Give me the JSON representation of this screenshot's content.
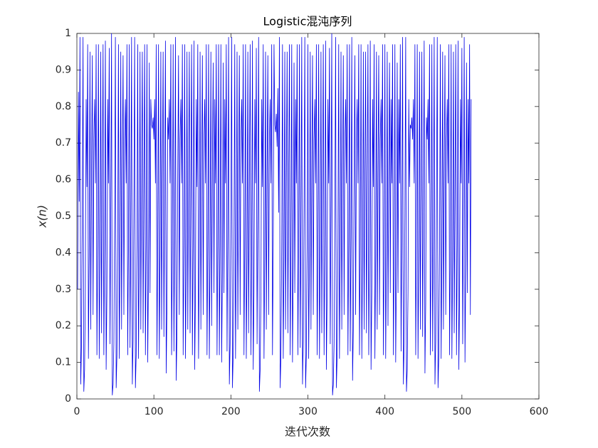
{
  "chart_data": {
    "type": "line",
    "title": "Logistic混沌序列",
    "x_label": "迭代次数",
    "y_label": "x(n)",
    "color": "#0000e6",
    "xlim": [
      0,
      600
    ],
    "xticks": [
      0,
      100,
      200,
      300,
      400,
      500,
      600
    ],
    "ylim": [
      0,
      1
    ],
    "yticks": [
      0,
      0.1,
      0.2,
      0.3,
      0.4,
      0.5,
      0.6,
      0.7,
      0.8,
      0.9,
      1
    ],
    "x": [
      1,
      2,
      3,
      4,
      5,
      6,
      7,
      8,
      9,
      10,
      11,
      12,
      13,
      14,
      15,
      16,
      17,
      18,
      19,
      20,
      21,
      22,
      23,
      24,
      25,
      26,
      27,
      28,
      29,
      30,
      31,
      32,
      33,
      34,
      35,
      36,
      37,
      38,
      39,
      40,
      41,
      42,
      43,
      44,
      45,
      46,
      47,
      48,
      49,
      50,
      51,
      52,
      53,
      54,
      55,
      56,
      57,
      58,
      59,
      60,
      61,
      62,
      63,
      64,
      65,
      66,
      67,
      68,
      69,
      70,
      71,
      72,
      73,
      74,
      75,
      76,
      77,
      78,
      79,
      80,
      81,
      82,
      83,
      84,
      85,
      86,
      87,
      88,
      89,
      90,
      91,
      92,
      93,
      94,
      95,
      96,
      97,
      98,
      99,
      100,
      101,
      102,
      103,
      104,
      105,
      106,
      107,
      108,
      109,
      110,
      111,
      112,
      113,
      114,
      115,
      116,
      117,
      118,
      119,
      120,
      121,
      122,
      123,
      124,
      125,
      126,
      127,
      128,
      129,
      130,
      131,
      132,
      133,
      134,
      135,
      136,
      137,
      138,
      139,
      140,
      141,
      142,
      143,
      144,
      145,
      146,
      147,
      148,
      149,
      150,
      151,
      152,
      153,
      154,
      155,
      156,
      157,
      158,
      159,
      160,
      161,
      162,
      163,
      164,
      165,
      166,
      167,
      168,
      169,
      170,
      171,
      172,
      173,
      174,
      175,
      176,
      177,
      178,
      179,
      180,
      181,
      182,
      183,
      184,
      185,
      186,
      187,
      188,
      189,
      190,
      191,
      192,
      193,
      194,
      195,
      196,
      197,
      198,
      199,
      200,
      201,
      202,
      203,
      204,
      205,
      206,
      207,
      208,
      209,
      210,
      211,
      212,
      213,
      214,
      215,
      216,
      217,
      218,
      219,
      220,
      221,
      222,
      223,
      224,
      225,
      226,
      227,
      228,
      229,
      230,
      231,
      232,
      233,
      234,
      235,
      236,
      237,
      238,
      239,
      240,
      241,
      242,
      243,
      244,
      245,
      246,
      247,
      248,
      249,
      250,
      251,
      252,
      253,
      254,
      255,
      256,
      257,
      258,
      259,
      260,
      261,
      262,
      263,
      264,
      265,
      266,
      267,
      268,
      269,
      270,
      271,
      272,
      273,
      274,
      275,
      276,
      277,
      278,
      279,
      280,
      281,
      282,
      283,
      284,
      285,
      286,
      287,
      288,
      289,
      290,
      291,
      292,
      293,
      294,
      295,
      296,
      297,
      298,
      299,
      300,
      301,
      302,
      303,
      304,
      305,
      306,
      307,
      308,
      309,
      310,
      311,
      312,
      313,
      314,
      315,
      316,
      317,
      318,
      319,
      320,
      321,
      322,
      323,
      324,
      325,
      326,
      327,
      328,
      329,
      330,
      331,
      332,
      333,
      334,
      335,
      336,
      337,
      338,
      339,
      340,
      341,
      342,
      343,
      344,
      345,
      346,
      347,
      348,
      349,
      350,
      351,
      352,
      353,
      354,
      355,
      356,
      357,
      358,
      359,
      360,
      361,
      362,
      363,
      364,
      365,
      366,
      367,
      368,
      369,
      370,
      371,
      372,
      373,
      374,
      375,
      376,
      377,
      378,
      379,
      380,
      381,
      382,
      383,
      384,
      385,
      386,
      387,
      388,
      389,
      390,
      391,
      392,
      393,
      394,
      395,
      396,
      397,
      398,
      399,
      400,
      401,
      402,
      403,
      404,
      405,
      406,
      407,
      408,
      409,
      410,
      411,
      412,
      413,
      414,
      415,
      416,
      417,
      418,
      419,
      420,
      421,
      422,
      423,
      424,
      425,
      426,
      427,
      428,
      429,
      430,
      431,
      432,
      433,
      434,
      435,
      436,
      437,
      438,
      439,
      440,
      441,
      442,
      443,
      444,
      445,
      446,
      447,
      448,
      449,
      450,
      451,
      452,
      453,
      454,
      455,
      456,
      457,
      458,
      459,
      460,
      461,
      462,
      463,
      464,
      465,
      466,
      467,
      468,
      469,
      470,
      471,
      472,
      473,
      474,
      475,
      476,
      477,
      478,
      479,
      480,
      481,
      482,
      483,
      484,
      485,
      486,
      487,
      488,
      489,
      490,
      491,
      492,
      493,
      494,
      495,
      496,
      497,
      498,
      499,
      500,
      501,
      502,
      503,
      504,
      505,
      506,
      507,
      508,
      509,
      510,
      511,
      512
    ],
    "values": [
      0.3,
      0.84,
      0.54,
      0.99,
      0.04,
      0.15,
      0.51,
      0.99,
      0.02,
      0.08,
      0.29,
      0.82,
      0.58,
      0.97,
      0.11,
      0.39,
      0.95,
      0.19,
      0.62,
      0.94,
      0.23,
      0.71,
      0.82,
      0.59,
      0.97,
      0.12,
      0.42,
      0.97,
      0.11,
      0.39,
      0.95,
      0.18,
      0.59,
      0.97,
      0.12,
      0.42,
      0.98,
      0.08,
      0.29,
      0.82,
      0.59,
      0.96,
      0.15,
      0.51,
      1.0,
      0.01,
      0.04,
      0.15,
      0.51,
      0.99,
      0.03,
      0.12,
      0.42,
      0.97,
      0.11,
      0.39,
      0.95,
      0.19,
      0.62,
      0.94,
      0.23,
      0.71,
      0.82,
      0.59,
      0.97,
      0.12,
      0.42,
      0.97,
      0.14,
      0.48,
      0.99,
      0.04,
      0.16,
      0.54,
      0.99,
      0.03,
      0.12,
      0.42,
      0.97,
      0.11,
      0.39,
      0.95,
      0.19,
      0.61,
      0.95,
      0.18,
      0.59,
      0.97,
      0.12,
      0.42,
      0.97,
      0.1,
      0.36,
      0.92,
      0.29,
      0.82,
      0.75,
      0.74,
      0.77,
      0.71,
      0.82,
      0.59,
      0.97,
      0.12,
      0.42,
      0.97,
      0.11,
      0.39,
      0.95,
      0.19,
      0.61,
      0.95,
      0.17,
      0.56,
      0.98,
      0.07,
      0.26,
      0.77,
      0.71,
      0.82,
      0.59,
      0.97,
      0.12,
      0.42,
      0.97,
      0.13,
      0.45,
      0.99,
      0.05,
      0.19,
      0.62,
      0.94,
      0.23,
      0.71,
      0.82,
      0.59,
      0.97,
      0.12,
      0.42,
      0.97,
      0.11,
      0.39,
      0.95,
      0.19,
      0.61,
      0.95,
      0.18,
      0.59,
      0.97,
      0.12,
      0.42,
      0.98,
      0.08,
      0.29,
      0.82,
      0.58,
      0.97,
      0.11,
      0.39,
      0.95,
      0.19,
      0.62,
      0.94,
      0.23,
      0.71,
      0.82,
      0.59,
      0.97,
      0.12,
      0.42,
      0.97,
      0.11,
      0.39,
      0.95,
      0.2,
      0.64,
      0.92,
      0.29,
      0.82,
      0.59,
      0.97,
      0.12,
      0.42,
      0.97,
      0.12,
      0.42,
      0.97,
      0.1,
      0.36,
      0.92,
      0.29,
      0.82,
      0.59,
      0.97,
      0.13,
      0.45,
      0.99,
      0.04,
      0.15,
      0.51,
      0.99,
      0.03,
      0.12,
      0.42,
      0.97,
      0.11,
      0.39,
      0.95,
      0.19,
      0.62,
      0.94,
      0.23,
      0.71,
      0.82,
      0.59,
      0.97,
      0.12,
      0.42,
      0.97,
      0.11,
      0.39,
      0.95,
      0.18,
      0.59,
      0.97,
      0.12,
      0.42,
      0.98,
      0.08,
      0.29,
      0.82,
      0.59,
      0.96,
      0.15,
      0.51,
      0.99,
      0.02,
      0.08,
      0.29,
      0.82,
      0.58,
      0.97,
      0.11,
      0.39,
      0.95,
      0.19,
      0.62,
      0.94,
      0.23,
      0.71,
      0.82,
      0.59,
      0.97,
      0.12,
      0.42,
      0.97,
      0.75,
      0.73,
      0.78,
      0.69,
      0.85,
      0.51,
      0.99,
      0.03,
      0.12,
      0.42,
      0.97,
      0.11,
      0.39,
      0.95,
      0.19,
      0.61,
      0.95,
      0.18,
      0.59,
      0.97,
      0.12,
      0.42,
      0.97,
      0.1,
      0.36,
      0.92,
      0.29,
      0.82,
      0.59,
      0.97,
      0.12,
      0.42,
      0.97,
      0.14,
      0.48,
      0.99,
      0.04,
      0.16,
      0.54,
      0.99,
      0.03,
      0.12,
      0.42,
      0.97,
      0.11,
      0.39,
      0.95,
      0.19,
      0.62,
      0.94,
      0.23,
      0.71,
      0.82,
      0.59,
      0.97,
      0.12,
      0.42,
      0.97,
      0.11,
      0.39,
      0.95,
      0.18,
      0.59,
      0.97,
      0.12,
      0.42,
      0.98,
      0.08,
      0.29,
      0.82,
      0.59,
      0.96,
      0.15,
      0.51,
      1.0,
      0.01,
      0.04,
      0.15,
      0.51,
      0.99,
      0.03,
      0.12,
      0.42,
      0.97,
      0.11,
      0.39,
      0.95,
      0.19,
      0.62,
      0.94,
      0.23,
      0.71,
      0.82,
      0.59,
      0.97,
      0.12,
      0.42,
      0.97,
      0.13,
      0.45,
      0.99,
      0.05,
      0.19,
      0.62,
      0.94,
      0.23,
      0.71,
      0.82,
      0.59,
      0.97,
      0.12,
      0.42,
      0.97,
      0.11,
      0.39,
      0.95,
      0.19,
      0.61,
      0.95,
      0.18,
      0.59,
      0.97,
      0.12,
      0.42,
      0.98,
      0.08,
      0.29,
      0.82,
      0.58,
      0.97,
      0.11,
      0.39,
      0.95,
      0.19,
      0.62,
      0.94,
      0.23,
      0.71,
      0.82,
      0.59,
      0.97,
      0.12,
      0.42,
      0.97,
      0.11,
      0.39,
      0.95,
      0.2,
      0.64,
      0.92,
      0.29,
      0.82,
      0.59,
      0.97,
      0.12,
      0.42,
      0.97,
      0.1,
      0.36,
      0.92,
      0.29,
      0.82,
      0.59,
      0.97,
      0.13,
      0.45,
      0.99,
      0.04,
      0.15,
      0.51,
      0.99,
      0.02,
      0.08,
      0.29,
      0.82,
      0.58,
      0.75,
      0.74,
      0.77,
      0.71,
      0.82,
      0.59,
      0.97,
      0.12,
      0.42,
      0.97,
      0.11,
      0.39,
      0.95,
      0.19,
      0.61,
      0.95,
      0.17,
      0.56,
      0.98,
      0.07,
      0.26,
      0.77,
      0.71,
      0.82,
      0.59,
      0.97,
      0.12,
      0.42,
      0.97,
      0.13,
      0.45,
      0.99,
      0.04,
      0.16,
      0.54,
      0.99,
      0.03,
      0.12,
      0.42,
      0.97,
      0.11,
      0.39,
      0.95,
      0.19,
      0.62,
      0.94,
      0.23,
      0.71,
      0.82,
      0.59,
      0.97,
      0.12,
      0.42,
      0.97,
      0.11,
      0.39,
      0.95,
      0.18,
      0.59,
      0.97,
      0.12,
      0.42,
      0.98,
      0.08,
      0.29,
      0.82,
      0.59,
      0.96,
      0.15,
      0.51,
      0.99,
      0.1,
      0.36,
      0.92,
      0.29,
      0.82,
      0.59,
      0.97,
      0.23,
      0.82
    ]
  }
}
